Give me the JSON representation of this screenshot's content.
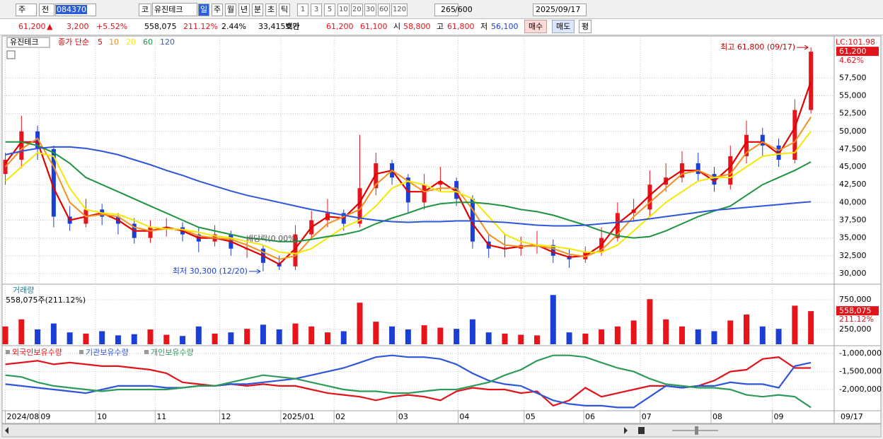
{
  "toolbar": {
    "market": "주",
    "prev": "전",
    "code": "084370",
    "code_type": "코",
    "name": "유진테크",
    "periods": [
      "일",
      "주",
      "월",
      "년",
      "분",
      "초",
      "틱"
    ],
    "intervals": [
      "1",
      "3",
      "5",
      "10",
      "20",
      "30",
      "60",
      "120"
    ],
    "count": "265",
    "max_count": "/600",
    "date": "2025/09/17"
  },
  "info_bar": {
    "price": "61,200",
    "arrow": "▲",
    "change": "3,200",
    "change_pct": "+5.52%",
    "volume": "558,075",
    "volume_ratio": "211.12%",
    "turnover": "2.44%",
    "amount": "33,415백만",
    "quote_label": "호가",
    "ask": "61,200",
    "bid": "61,100",
    "open_label": "시",
    "open": "58,800",
    "high_label": "고",
    "high": "61,800",
    "low_label": "저",
    "low": "56,100",
    "buy": "매수",
    "sell": "매도",
    "avg": "평"
  },
  "chart_data": [
    {
      "type": "candlestick",
      "legend_label": "유진테크",
      "legend_prefix": "종가 단순",
      "up_color": "#e8141b",
      "down_color": "#1a3fd6",
      "open": [
        44000,
        46000,
        50000,
        47500,
        38000,
        37000,
        39000,
        38000,
        37000,
        35000,
        36500,
        36500,
        35500,
        34500,
        35500,
        33500,
        33500,
        31500,
        31000,
        35500,
        37500,
        38500,
        37000,
        42000,
        45500,
        43500,
        40000,
        42500,
        43000,
        40500,
        34500,
        33500,
        33500,
        34000,
        34000,
        32500,
        32000,
        33000,
        35000,
        38500,
        39000,
        42500,
        43500,
        45500,
        44000,
        42500,
        46500,
        49500,
        48000,
        46000,
        53000
      ],
      "high": [
        47000,
        52200,
        50800,
        48000,
        39500,
        40500,
        39800,
        38500,
        37800,
        37500,
        37800,
        37200,
        36500,
        36800,
        36000,
        34800,
        34000,
        32500,
        36800,
        38800,
        40500,
        39000,
        49500,
        47000,
        46000,
        44000,
        44000,
        45000,
        43500,
        41000,
        35500,
        35500,
        35200,
        36000,
        34800,
        33500,
        33800,
        36500,
        40000,
        40500,
        44500,
        45500,
        47200,
        47000,
        45000,
        48000,
        51500,
        50500,
        49000,
        54500,
        61800
      ],
      "low": [
        42500,
        44800,
        46000,
        36500,
        36000,
        36500,
        36800,
        35500,
        34200,
        34300,
        35200,
        34500,
        33000,
        33800,
        32500,
        32200,
        30300,
        30500,
        30500,
        34800,
        36500,
        36000,
        36500,
        41000,
        42500,
        38500,
        39000,
        41500,
        39500,
        33500,
        32200,
        32300,
        32500,
        32800,
        31500,
        30800,
        31500,
        32500,
        34500,
        37500,
        38000,
        41500,
        42800,
        43000,
        41500,
        41800,
        45500,
        46500,
        45000,
        45500,
        52500
      ],
      "close": [
        46000,
        50000,
        47500,
        38000,
        37000,
        39000,
        38000,
        37000,
        35000,
        36500,
        36500,
        35500,
        34500,
        35500,
        33500,
        33500,
        31500,
        31000,
        35500,
        37500,
        38500,
        37000,
        42000,
        45500,
        43500,
        40000,
        42500,
        43000,
        40500,
        34500,
        33500,
        33500,
        34000,
        34000,
        32500,
        32000,
        33000,
        35000,
        38500,
        39000,
        42500,
        43500,
        45500,
        44000,
        42500,
        46500,
        49500,
        48000,
        46000,
        53000,
        61200
      ],
      "series": [
        {
          "name": "5",
          "color": "#e00000",
          "values": [
            45500,
            48500,
            48500,
            42000,
            37500,
            38000,
            38500,
            37500,
            36000,
            36000,
            36500,
            36000,
            35000,
            35000,
            34500,
            33500,
            32500,
            31300,
            33500,
            36500,
            38000,
            37800,
            40000,
            44000,
            44500,
            41500,
            41500,
            43000,
            41500,
            37000,
            34000,
            33500,
            33800,
            34000,
            33000,
            32300,
            32500,
            34000,
            37000,
            38800,
            41000,
            43000,
            44500,
            44500,
            43000,
            45000,
            48500,
            48500,
            46800,
            50500,
            57000
          ]
        },
        {
          "name": "10",
          "color": "#f39020",
          "values": [
            45000,
            47500,
            49000,
            45000,
            40000,
            38000,
            38300,
            38000,
            36500,
            36000,
            36300,
            36200,
            35300,
            35000,
            34800,
            34000,
            33000,
            32000,
            32500,
            35000,
            37000,
            38000,
            39000,
            42500,
            44500,
            43000,
            41500,
            42000,
            42000,
            39000,
            35500,
            34000,
            33800,
            33900,
            33500,
            32700,
            32400,
            33300,
            35500,
            38000,
            40000,
            42000,
            44000,
            44500,
            43500,
            44000,
            47000,
            48500,
            47300,
            48500,
            52000
          ]
        },
        {
          "name": "20",
          "color": "#f5e800",
          "values": [
            43000,
            45000,
            47000,
            46500,
            42000,
            39000,
            38500,
            38300,
            37500,
            36500,
            36300,
            36200,
            35800,
            35300,
            35000,
            34500,
            34000,
            33000,
            32800,
            33500,
            35000,
            36500,
            37500,
            39500,
            42000,
            43000,
            42500,
            41500,
            41500,
            40500,
            38000,
            35500,
            34500,
            34000,
            33800,
            33500,
            33000,
            33000,
            34000,
            36000,
            38000,
            40000,
            41500,
            43000,
            43500,
            43500,
            45000,
            46500,
            46800,
            47000,
            50000
          ]
        },
        {
          "name": "60",
          "color": "#1e9440",
          "values": [
            48500,
            48500,
            48000,
            47000,
            45500,
            43500,
            42500,
            41500,
            40500,
            39500,
            38500,
            37500,
            36500,
            36000,
            35500,
            35000,
            34800,
            34500,
            34500,
            34800,
            35200,
            35500,
            36000,
            37000,
            37800,
            38500,
            39300,
            39800,
            40000,
            40000,
            39800,
            39500,
            39000,
            38700,
            38200,
            37500,
            36800,
            36000,
            35300,
            35000,
            35200,
            36000,
            37000,
            38000,
            38800,
            39500,
            41000,
            42500,
            43500,
            44500,
            45700
          ]
        },
        {
          "name": "120",
          "color": "#2f56d8",
          "values": [
            46700,
            47200,
            47600,
            47800,
            47800,
            47600,
            47200,
            46700,
            46000,
            45300,
            44500,
            43800,
            43000,
            42300,
            41600,
            41000,
            40500,
            40000,
            39500,
            39000,
            38600,
            38200,
            37800,
            37500,
            37300,
            37200,
            37300,
            37300,
            37400,
            37400,
            37300,
            37200,
            37000,
            36800,
            36700,
            36700,
            36800,
            37000,
            37200,
            37400,
            37700,
            38000,
            38300,
            38600,
            38900,
            39100,
            39300,
            39500,
            39700,
            39900,
            40100
          ]
        }
      ],
      "xlim": [
        -0.2,
        51.4
      ],
      "xticks": [
        {
          "value": 0,
          "label": "2024/08"
        },
        {
          "value": 2.1,
          "label": "09"
        },
        {
          "value": 5.6,
          "label": "10"
        },
        {
          "value": 9.3,
          "label": "11"
        },
        {
          "value": 13.3,
          "label": "12"
        },
        {
          "value": 17.1,
          "label": "2025/01"
        },
        {
          "value": 20.4,
          "label": "02"
        },
        {
          "value": 24.3,
          "label": "03"
        },
        {
          "value": 28.1,
          "label": "04"
        },
        {
          "value": 32.2,
          "label": "05"
        },
        {
          "value": 35.9,
          "label": "06"
        },
        {
          "value": 39.4,
          "label": "07"
        },
        {
          "value": 43.8,
          "label": "08"
        },
        {
          "value": 47.6,
          "label": "09"
        }
      ],
      "end_date_label": "09/17",
      "ylim": [
        28500,
        63000
      ],
      "yticks": [
        {
          "value": 30000,
          "label": "30,000"
        },
        {
          "value": 32500,
          "label": "32,500"
        },
        {
          "value": 35000,
          "label": "35,000"
        },
        {
          "value": 37500,
          "label": "37,500"
        },
        {
          "value": 40000,
          "label": "40,000"
        },
        {
          "value": 42500,
          "label": "42,500"
        },
        {
          "value": 45000,
          "label": "45,000"
        },
        {
          "value": 47500,
          "label": "47,500"
        },
        {
          "value": 50000,
          "label": "50,000"
        },
        {
          "value": 52500,
          "label": "52,500"
        },
        {
          "value": 55000,
          "label": "55,000"
        },
        {
          "value": 57500,
          "label": "57,500"
        }
      ],
      "grid": true,
      "high_label": "최고 61,800 (09/17)",
      "low_label": "최저 30,300 (12/20)",
      "dividend_label": "배당락(0.00%)",
      "lc_label": "LC:101.98",
      "last_price_label": "61,200",
      "change_label": "4.62%"
    },
    {
      "type": "bar",
      "title": "거래량",
      "subtitle": "558,075주(211.12%)",
      "values": [
        300000,
        420000,
        250000,
        350000,
        200000,
        180000,
        220000,
        150000,
        170000,
        250000,
        160000,
        140000,
        300000,
        180000,
        200000,
        260000,
        330000,
        250000,
        350000,
        300000,
        200000,
        220000,
        700000,
        380000,
        300000,
        250000,
        320000,
        280000,
        260000,
        420000,
        200000,
        180000,
        160000,
        150000,
        830000,
        200000,
        180000,
        250000,
        300000,
        400000,
        760000,
        420000,
        300000,
        250000,
        220000,
        400000,
        500000,
        300000,
        260000,
        650000,
        558075
      ],
      "ylim": [
        0,
        1000000
      ],
      "yticks": [
        {
          "value": 250000,
          "label": "250,000"
        },
        {
          "value": 750000,
          "label": "750,000"
        }
      ],
      "last_value_label": "558,075",
      "ratio_label": "211.12%"
    },
    {
      "type": "line",
      "series": [
        {
          "name": "외국인보유수량",
          "color": "#e0141a",
          "values": [
            -1300000,
            -1250000,
            -1200000,
            -1300000,
            -1250000,
            -1300000,
            -1350000,
            -1350000,
            -1400000,
            -1450000,
            -1550000,
            -1800000,
            -1850000,
            -1900000,
            -1850000,
            -1900000,
            -1850000,
            -1900000,
            -1900000,
            -2000000,
            -2100000,
            -2150000,
            -2200000,
            -2300000,
            -2200000,
            -2150000,
            -2200000,
            -2300000,
            -2050000,
            -1950000,
            -2000000,
            -2000000,
            -2100000,
            -2050000,
            -2450000,
            -2300000,
            -1950000,
            -2200000,
            -2100000,
            -2000000,
            -1900000,
            -1900000,
            -1950000,
            -1900000,
            -1750000,
            -1500000,
            -1450000,
            -1150000,
            -1100000,
            -1400000,
            -1400000
          ]
        },
        {
          "name": "기관보유수량",
          "color": "#2f56d8",
          "values": [
            -1850000,
            -1900000,
            -1950000,
            -2000000,
            -2050000,
            -2100000,
            -2000000,
            -1900000,
            -1900000,
            -1900000,
            -1950000,
            -1950000,
            -1900000,
            -1900000,
            -1850000,
            -1850000,
            -1800000,
            -1750000,
            -1700000,
            -1600000,
            -1500000,
            -1400000,
            -1250000,
            -1100000,
            -1050000,
            -1100000,
            -1100000,
            -1150000,
            -1300000,
            -1550000,
            -1750000,
            -1850000,
            -1900000,
            -2100000,
            -2300000,
            -2400000,
            -2450000,
            -2450000,
            -2500000,
            -2500000,
            -2200000,
            -1900000,
            -1950000,
            -1900000,
            -1900000,
            -1800000,
            -1850000,
            -1850000,
            -1950000,
            -1350000,
            -1250000
          ]
        },
        {
          "name": "개인보유수량",
          "color": "#2e9a5a",
          "values": [
            -1600000,
            -1650000,
            -1800000,
            -1900000,
            -1950000,
            -2000000,
            -2050000,
            -2000000,
            -2000000,
            -2000000,
            -2000000,
            -1950000,
            -1900000,
            -1900000,
            -1800000,
            -1700000,
            -1600000,
            -1650000,
            -1700000,
            -1800000,
            -1900000,
            -2000000,
            -2050000,
            -2050000,
            -2100000,
            -2100000,
            -2050000,
            -2000000,
            -2000000,
            -1900000,
            -1800000,
            -1600000,
            -1450000,
            -1200000,
            -1050000,
            -1050000,
            -1100000,
            -1250000,
            -1400000,
            -1500000,
            -1700000,
            -1850000,
            -1900000,
            -1950000,
            -1950000,
            -2000000,
            -2150000,
            -2200000,
            -2150000,
            -2200000,
            -2500000
          ]
        }
      ],
      "ylim": [
        -2570000,
        -840000
      ],
      "yticks": [
        {
          "value": -1000000,
          "label": "-1,000,000"
        },
        {
          "value": -1500000,
          "label": "-1,500,000"
        },
        {
          "value": -2000000,
          "label": "-2,000,000"
        }
      ]
    }
  ]
}
